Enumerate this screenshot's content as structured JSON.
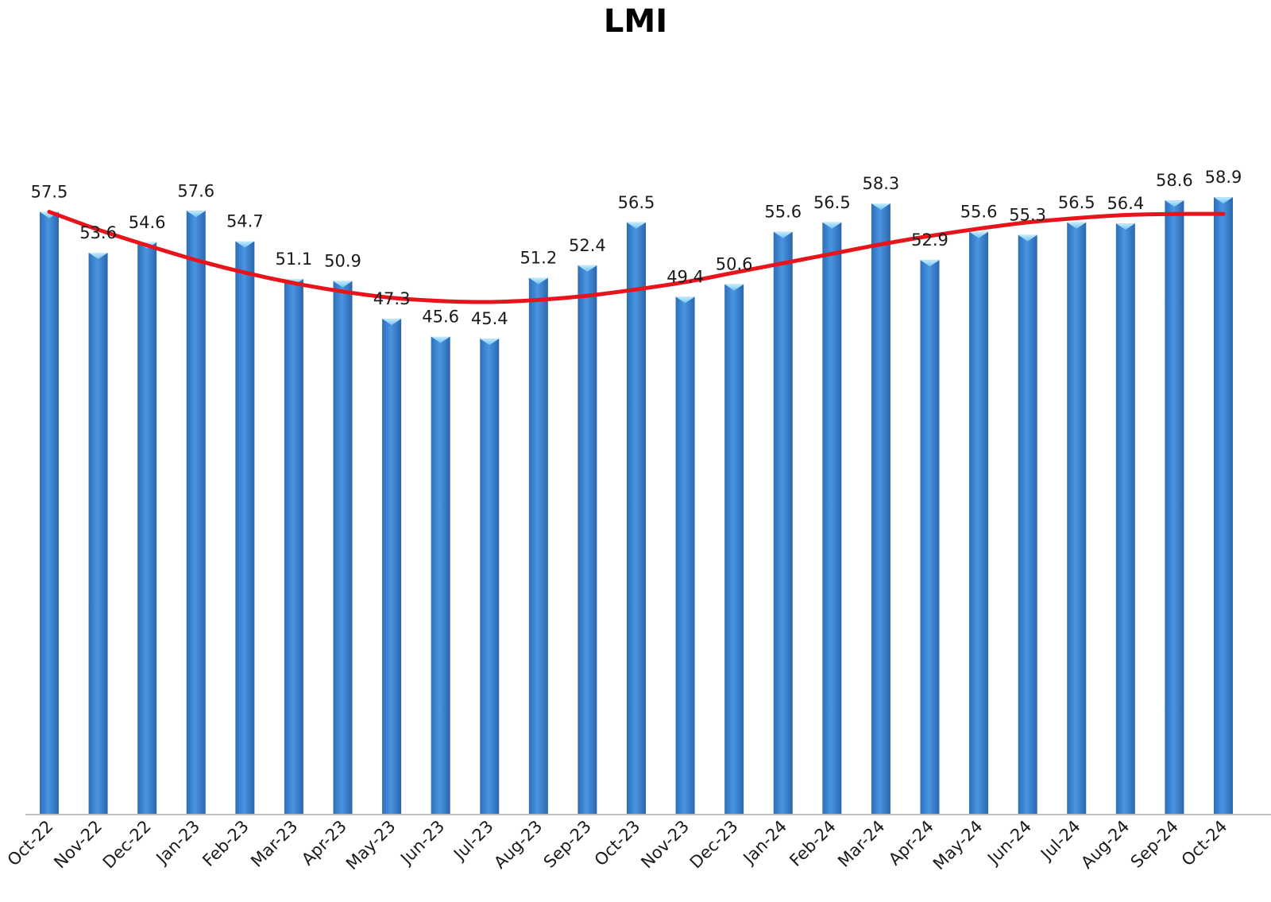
{
  "chart_data": {
    "type": "bar",
    "title": "LMI",
    "xlabel": "",
    "ylabel": "",
    "ylim": [
      0,
      60
    ],
    "grid": false,
    "legend": "none",
    "categories": [
      "Oct-22",
      "Nov-22",
      "Dec-22",
      "Jan-23",
      "Feb-23",
      "Mar-23",
      "Apr-23",
      "May-23",
      "Jun-23",
      "Jul-23",
      "Aug-23",
      "Sep-23",
      "Oct-23",
      "Nov-23",
      "Dec-23",
      "Jan-24",
      "Feb-24",
      "Mar-24",
      "Apr-24",
      "May-24",
      "Jun-24",
      "Jul-24",
      "Aug-24",
      "Sep-24",
      "Oct-24"
    ],
    "series": [
      {
        "values": [
          57.5,
          53.6,
          54.6,
          57.6,
          54.7,
          51.1,
          50.9,
          47.3,
          45.6,
          45.4,
          51.2,
          52.4,
          56.5,
          49.4,
          50.6,
          55.6,
          56.5,
          58.3,
          52.9,
          55.6,
          55.3,
          56.5,
          56.4,
          58.6,
          58.9
        ],
        "color": "#3f86d6"
      }
    ],
    "trendline": {
      "type": "polynomial",
      "color": "#e8141b",
      "values": [
        57.5,
        55.8,
        54.3,
        52.9,
        51.7,
        50.7,
        49.9,
        49.3,
        49.0,
        48.9,
        49.1,
        49.5,
        50.1,
        50.8,
        51.7,
        52.6,
        53.5,
        54.4,
        55.2,
        55.9,
        56.5,
        56.9,
        57.2,
        57.3,
        57.3
      ]
    }
  }
}
